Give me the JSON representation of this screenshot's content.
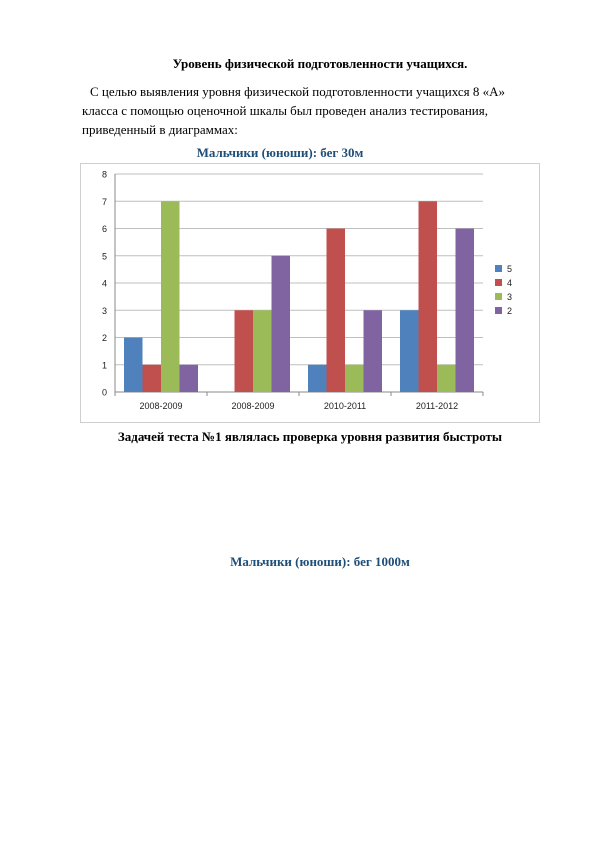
{
  "document": {
    "title": "Уровень физической подготовленности учащихся.",
    "intro": "С целью выявления уровня физической подготовленности учащихся 8 «А» класса с помощью оценочной шкалы был проведен анализ тестирования, приведенный в диаграммах:",
    "chart1_caption": "Мальчики (юноши): бег 30м",
    "task_line": "Задачей теста №1 являлась проверка уровня развития быстроты",
    "chart2_caption": "Мальчики (юноши): бег 1000м"
  },
  "chart_data": {
    "type": "bar",
    "title": "",
    "xlabel": "",
    "ylabel": "",
    "categories": [
      "2008-2009",
      "2008-2009",
      "2010-2011",
      "2011-2012"
    ],
    "ylim": [
      0,
      8
    ],
    "yticks": [
      0,
      1,
      2,
      3,
      4,
      5,
      6,
      7,
      8
    ],
    "grid": true,
    "legend_position": "right",
    "series": [
      {
        "name": "5",
        "color": "#4f81bd",
        "values": [
          2,
          0,
          1,
          3
        ]
      },
      {
        "name": "4",
        "color": "#c0504d",
        "values": [
          1,
          3,
          6,
          7
        ]
      },
      {
        "name": "3",
        "color": "#9bbb59",
        "values": [
          7,
          3,
          1,
          1
        ]
      },
      {
        "name": "2",
        "color": "#8064a2",
        "values": [
          1,
          5,
          3,
          6
        ]
      }
    ]
  }
}
